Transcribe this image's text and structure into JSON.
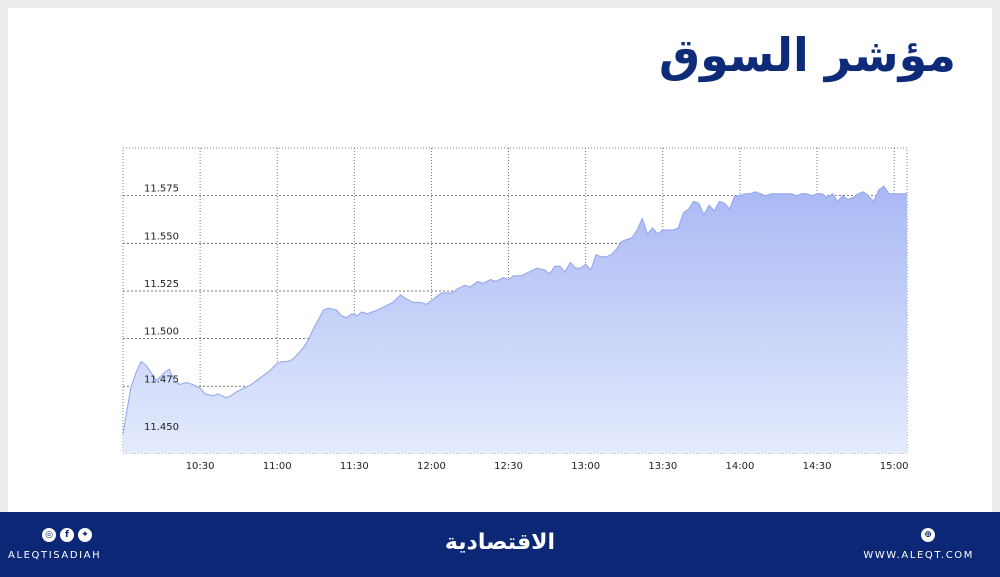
{
  "header": {
    "title": "مؤشر السوق"
  },
  "footer": {
    "social_handle": "ALEQTISADIAH",
    "brand": "الاقتصادية",
    "website": "WWW.ALEQT.COM",
    "icons": [
      "instagram-icon",
      "facebook-icon",
      "twitter-icon",
      "web-icon"
    ]
  },
  "colors": {
    "area_top": "#a9b8f4",
    "area_bottom": "#e4ebfd",
    "line": "#8fa3ef",
    "footer_bg": "#0d2777",
    "title": "#0e2b7a"
  },
  "chart_data": {
    "type": "area",
    "title": "",
    "xlabel": "",
    "ylabel": "",
    "xlim": [
      "10:00",
      "15:05"
    ],
    "ylim": [
      11.44,
      11.6
    ],
    "grid": true,
    "ytick_labels": [
      "11.450",
      "11.475",
      "11.500",
      "11.525",
      "11.550",
      "11.575"
    ],
    "xtick_labels": [
      "10:30",
      "11:00",
      "11:30",
      "12:00",
      "12:30",
      "13:00",
      "13:30",
      "14:00",
      "14:30",
      "15:00"
    ],
    "x": [
      "10:00",
      "10:03",
      "10:05",
      "10:07",
      "10:09",
      "10:11",
      "10:13",
      "10:16",
      "10:18",
      "10:20",
      "10:22",
      "10:25",
      "10:27",
      "10:30",
      "10:32",
      "10:35",
      "10:37",
      "10:40",
      "10:42",
      "10:44",
      "10:47",
      "10:50",
      "10:53",
      "10:57",
      "11:00",
      "11:02",
      "11:04",
      "11:06",
      "11:08",
      "11:10",
      "11:12",
      "11:14",
      "11:16",
      "11:18",
      "11:20",
      "11:23",
      "11:25",
      "11:27",
      "11:29",
      "11:31",
      "11:33",
      "11:35",
      "11:37",
      "11:39",
      "11:42",
      "11:45",
      "11:48",
      "11:50",
      "11:53",
      "11:56",
      "11:58",
      "12:00",
      "12:02",
      "12:04",
      "12:06",
      "12:08",
      "12:10",
      "12:13",
      "12:15",
      "12:18",
      "12:20",
      "12:23",
      "12:25",
      "12:28",
      "12:30",
      "12:32",
      "12:35",
      "12:38",
      "12:41",
      "12:44",
      "12:46",
      "12:48",
      "12:50",
      "12:52",
      "12:54",
      "12:56",
      "12:58",
      "13:00",
      "13:02",
      "13:04",
      "13:06",
      "13:08",
      "13:10",
      "13:12",
      "13:14",
      "13:16",
      "13:18",
      "13:20",
      "13:22",
      "13:24",
      "13:26",
      "13:28",
      "13:30",
      "13:32",
      "13:34",
      "13:36",
      "13:38",
      "13:40",
      "13:42",
      "13:44",
      "13:46",
      "13:48",
      "13:50",
      "13:52",
      "13:54",
      "13:56",
      "13:58",
      "14:00",
      "14:02",
      "14:04",
      "14:06",
      "14:08",
      "14:10",
      "14:12",
      "14:14",
      "14:16",
      "14:18",
      "14:20",
      "14:22",
      "14:24",
      "14:26",
      "14:28",
      "14:30",
      "14:32",
      "14:34",
      "14:36",
      "14:38",
      "14:40",
      "14:42",
      "14:44",
      "14:46",
      "14:48",
      "14:50",
      "14:52",
      "14:54",
      "14:56",
      "14:58",
      "15:00",
      "15:02",
      "15:05"
    ],
    "series": [
      {
        "values": [
          11.45,
          11.474,
          11.482,
          11.488,
          11.486,
          11.482,
          11.478,
          11.482,
          11.484,
          11.478,
          11.476,
          11.477,
          11.476,
          11.474,
          11.471,
          11.47,
          11.471,
          11.469,
          11.47,
          11.472,
          11.474,
          11.476,
          11.479,
          11.483,
          11.487,
          11.488,
          11.488,
          11.489,
          11.492,
          11.495,
          11.499,
          11.505,
          11.51,
          11.515,
          11.516,
          11.515,
          11.512,
          11.511,
          11.513,
          11.512,
          11.514,
          11.513,
          11.514,
          11.515,
          11.517,
          11.519,
          11.523,
          11.521,
          11.519,
          11.519,
          11.518,
          11.52,
          11.522,
          11.524,
          11.524,
          11.524,
          11.526,
          11.528,
          11.527,
          11.53,
          11.529,
          11.531,
          11.53,
          11.532,
          11.531,
          11.533,
          11.533,
          11.535,
          11.537,
          11.536,
          11.534,
          11.538,
          11.538,
          11.535,
          11.54,
          11.537,
          11.537,
          11.539,
          11.536,
          11.544,
          11.543,
          11.543,
          11.544,
          11.547,
          11.551,
          11.552,
          11.553,
          11.557,
          11.563,
          11.555,
          11.558,
          11.555,
          11.557,
          11.557,
          11.557,
          11.558,
          11.566,
          11.568,
          11.572,
          11.571,
          11.565,
          11.57,
          11.567,
          11.572,
          11.571,
          11.568,
          11.575,
          11.575,
          11.576,
          11.576,
          11.577,
          11.576,
          11.575,
          11.576,
          11.576,
          11.576,
          11.576,
          11.576,
          11.575,
          11.576,
          11.576,
          11.575,
          11.576,
          11.576,
          11.574,
          11.576,
          11.572,
          11.575,
          11.573,
          11.574,
          11.576,
          11.577,
          11.575,
          11.572,
          11.578,
          11.58,
          11.576,
          11.576,
          11.576,
          11.576
        ]
      }
    ]
  }
}
